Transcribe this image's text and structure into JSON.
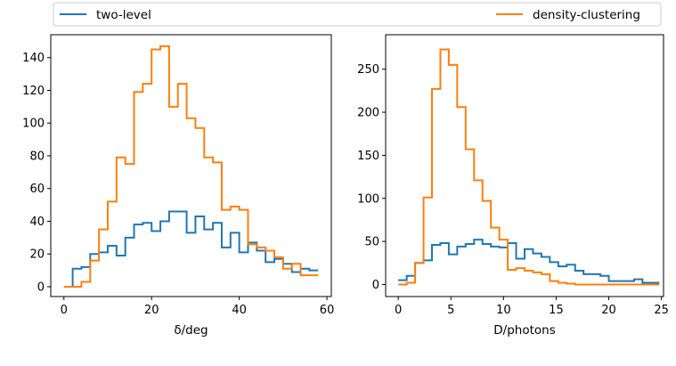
{
  "legend": {
    "placement": "top",
    "entries": [
      {
        "label": "two-level",
        "color": "#1f77b4"
      },
      {
        "label": "density-clustering",
        "color": "#ff7f0e"
      }
    ]
  },
  "chart_data": [
    {
      "type": "step",
      "xlabel": "δ/deg",
      "ylabel": "",
      "xlim": [
        -3,
        61
      ],
      "ylim": [
        -6,
        154
      ],
      "xticks": [
        0,
        20,
        40,
        60
      ],
      "yticks": [
        0,
        20,
        40,
        60,
        80,
        100,
        120,
        140
      ],
      "grid": false,
      "series": [
        {
          "name": "two-level",
          "color": "#1f77b4",
          "edges": [
            0,
            2,
            4,
            6,
            8,
            10,
            12,
            14,
            16,
            18,
            20,
            22,
            24,
            26,
            28,
            30,
            32,
            34,
            36,
            38,
            40,
            42,
            44,
            46,
            48,
            50,
            52,
            54,
            56,
            58
          ],
          "values": [
            0,
            11,
            12,
            20,
            21,
            25,
            19,
            30,
            38,
            39,
            34,
            40,
            46,
            46,
            33,
            43,
            35,
            39,
            24,
            33,
            21,
            27,
            22,
            15,
            17,
            14,
            9,
            11,
            10
          ]
        },
        {
          "name": "density-clustering",
          "color": "#ff7f0e",
          "edges": [
            0,
            2,
            4,
            6,
            8,
            10,
            12,
            14,
            16,
            18,
            20,
            22,
            24,
            26,
            28,
            30,
            32,
            34,
            36,
            38,
            40,
            42,
            44,
            46,
            48,
            50,
            52,
            54,
            56,
            58
          ],
          "values": [
            0,
            0,
            3,
            16,
            35,
            52,
            79,
            75,
            119,
            124,
            145,
            147,
            110,
            124,
            103,
            97,
            79,
            76,
            47,
            49,
            47,
            26,
            24,
            22,
            18,
            11,
            14,
            7,
            7
          ]
        }
      ]
    },
    {
      "type": "step",
      "xlabel": "D/photons",
      "ylabel": "",
      "xlim": [
        -1.2,
        25.2
      ],
      "ylim": [
        -14,
        290
      ],
      "xticks": [
        0,
        5,
        10,
        15,
        20,
        25
      ],
      "yticks": [
        0,
        50,
        100,
        150,
        200,
        250
      ],
      "grid": false,
      "series": [
        {
          "name": "two-level",
          "color": "#1f77b4",
          "edges": [
            0,
            0.8,
            1.6,
            2.4,
            3.2,
            4.0,
            4.8,
            5.6,
            6.4,
            7.2,
            8.0,
            8.8,
            9.6,
            10.4,
            11.2,
            12.0,
            12.8,
            13.6,
            14.4,
            15.2,
            16.0,
            16.8,
            17.6,
            18.4,
            19.2,
            20.0,
            20.8,
            21.6,
            22.4,
            23.2,
            24.0,
            24.8
          ],
          "values": [
            5,
            10,
            25,
            28,
            46,
            48,
            35,
            44,
            47,
            52,
            47,
            44,
            43,
            48,
            30,
            41,
            36,
            32,
            26,
            21,
            23,
            16,
            12,
            12,
            10,
            4,
            4,
            4,
            6,
            2,
            2
          ]
        },
        {
          "name": "density-clustering",
          "color": "#ff7f0e",
          "edges": [
            0,
            0.8,
            1.6,
            2.4,
            3.2,
            4.0,
            4.8,
            5.6,
            6.4,
            7.2,
            8.0,
            8.8,
            9.6,
            10.4,
            11.2,
            12.0,
            12.8,
            13.6,
            14.4,
            15.2,
            16.0,
            16.8,
            17.6,
            18.4,
            19.2,
            20.0,
            20.8,
            21.6,
            22.4,
            23.2,
            24.0,
            24.8
          ],
          "values": [
            0,
            2,
            25,
            101,
            227,
            273,
            255,
            206,
            157,
            121,
            97,
            66,
            52,
            17,
            19,
            16,
            14,
            12,
            4,
            2,
            1,
            0,
            0,
            0,
            0,
            0,
            0,
            0,
            0,
            0,
            0
          ]
        }
      ]
    }
  ]
}
